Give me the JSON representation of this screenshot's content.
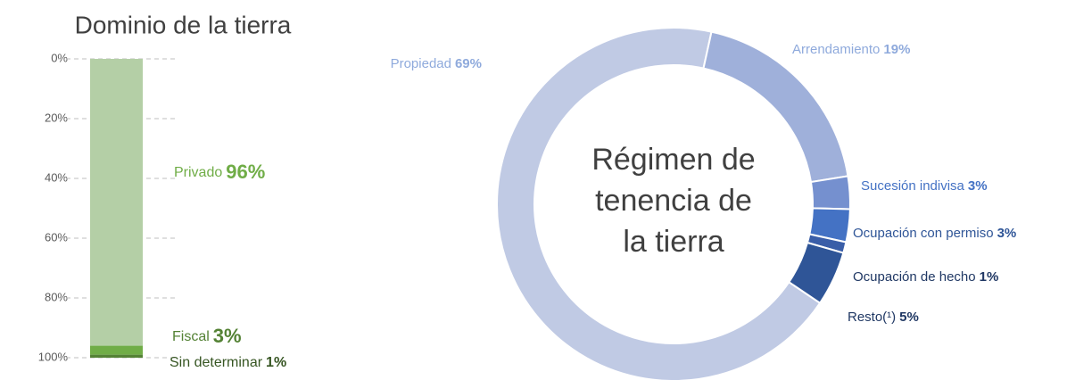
{
  "chart_data": [
    {
      "type": "bar",
      "stacked": true,
      "title": "Dominio de la tierra",
      "ylim": [
        0,
        100
      ],
      "yticks": [
        {
          "value": 0,
          "label": "0%"
        },
        {
          "value": 20,
          "label": "20%"
        },
        {
          "value": 40,
          "label": "40%"
        },
        {
          "value": 60,
          "label": "60%"
        },
        {
          "value": 80,
          "label": "80%"
        },
        {
          "value": 100,
          "label": "100%"
        }
      ],
      "grid": true,
      "series": [
        {
          "name": "Privado",
          "color": "#b4cfa6",
          "values": [
            96
          ],
          "value_labels": [
            "96%"
          ]
        },
        {
          "name": "Fiscal",
          "color": "#70ad47",
          "values": [
            3
          ],
          "value_labels": [
            "3%"
          ]
        },
        {
          "name": "Sin determinar",
          "color": "#548235",
          "values": [
            1
          ],
          "value_labels": [
            "1%"
          ]
        }
      ]
    },
    {
      "type": "pie",
      "donut": true,
      "title": "Régimen de tenencia de la tierra",
      "categories": [
        "Propiedad",
        "Arrendamiento",
        "Sucesión indivisa",
        "Ocupación con permiso",
        "Ocupación de hecho",
        "Resto(¹)"
      ],
      "values": [
        69,
        19,
        3,
        3,
        1,
        5
      ],
      "value_labels": [
        "69%",
        "19%",
        "3%",
        "3%",
        "1%",
        "5%"
      ],
      "colors": [
        "#c0cae4",
        "#9fb0da",
        "#7590cf",
        "#4472c4",
        "#3a5ea8",
        "#2f5597"
      ]
    }
  ]
}
